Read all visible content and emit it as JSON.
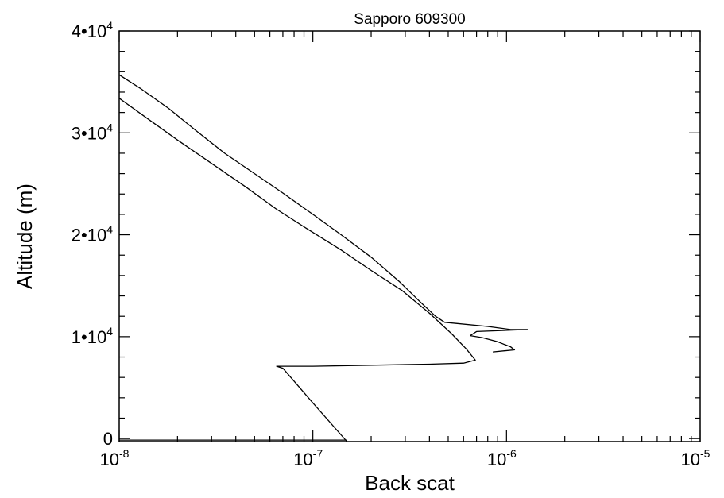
{
  "chart_data": {
    "type": "line",
    "title": "Sapporo 609300",
    "xlabel": "Back scat",
    "ylabel": "Altitude (m)",
    "x_scale": "log",
    "xlim": [
      1e-08,
      1e-05
    ],
    "ylim": [
      -300,
      40000
    ],
    "x_ticks": [
      {
        "value": 1e-08,
        "base": "10",
        "exp": "-8"
      },
      {
        "value": 1e-07,
        "base": "10",
        "exp": "-7"
      },
      {
        "value": 1e-06,
        "base": "10",
        "exp": "-6"
      },
      {
        "value": 1e-05,
        "base": "10",
        "exp": "-5"
      }
    ],
    "y_ticks": [
      {
        "value": 0,
        "mant": "0",
        "exp": ""
      },
      {
        "value": 10000,
        "mant": "1•10",
        "exp": "4"
      },
      {
        "value": 20000,
        "mant": "2•10",
        "exp": "4"
      },
      {
        "value": 30000,
        "mant": "3•10",
        "exp": "4"
      },
      {
        "value": 40000,
        "mant": "4•10",
        "exp": "4"
      }
    ],
    "grid": false,
    "series": [
      {
        "x": [
          1e-08,
          1.3e-08,
          1.8e-08,
          2.5e-08,
          3.5e-08,
          5e-08,
          7e-08,
          1e-07,
          1.4e-07,
          2e-07,
          2.8e-07,
          3.5e-07,
          4.3e-07,
          4.8e-07,
          5.5e-07,
          8e-07,
          1.05e-06,
          1.28e-06,
          7e-07,
          6.5e-07,
          7.5e-07,
          9e-07,
          1.05e-06,
          1.1e-06,
          8.5e-07
        ],
        "y": [
          35700,
          34300,
          32400,
          30200,
          28000,
          26000,
          24100,
          22000,
          20000,
          17800,
          15400,
          13600,
          12000,
          11400,
          11300,
          11000,
          10700,
          10700,
          10500,
          10100,
          9900,
          9500,
          9000,
          8700,
          8500
        ]
      },
      {
        "x": [
          1e-08,
          1.4e-08,
          2e-08,
          3e-08,
          4.5e-08,
          6.5e-08,
          9.5e-08,
          1.4e-07,
          2e-07,
          2.9e-07,
          4e-07,
          5.2e-07,
          6.2e-07,
          6.9e-07,
          6e-07,
          4e-07,
          2e-07,
          1e-07,
          6.5e-08,
          7e-08,
          1e-07,
          1.5e-07
        ],
        "y": [
          33400,
          31400,
          29300,
          27000,
          24700,
          22500,
          20500,
          18500,
          16500,
          14500,
          12300,
          10300,
          8800,
          7700,
          7400,
          7300,
          7200,
          7100,
          7100,
          6900,
          3500,
          -300
        ]
      },
      {
        "x": [
          1e-08,
          1.5e-07
        ],
        "y": [
          -150,
          -150
        ]
      }
    ]
  }
}
